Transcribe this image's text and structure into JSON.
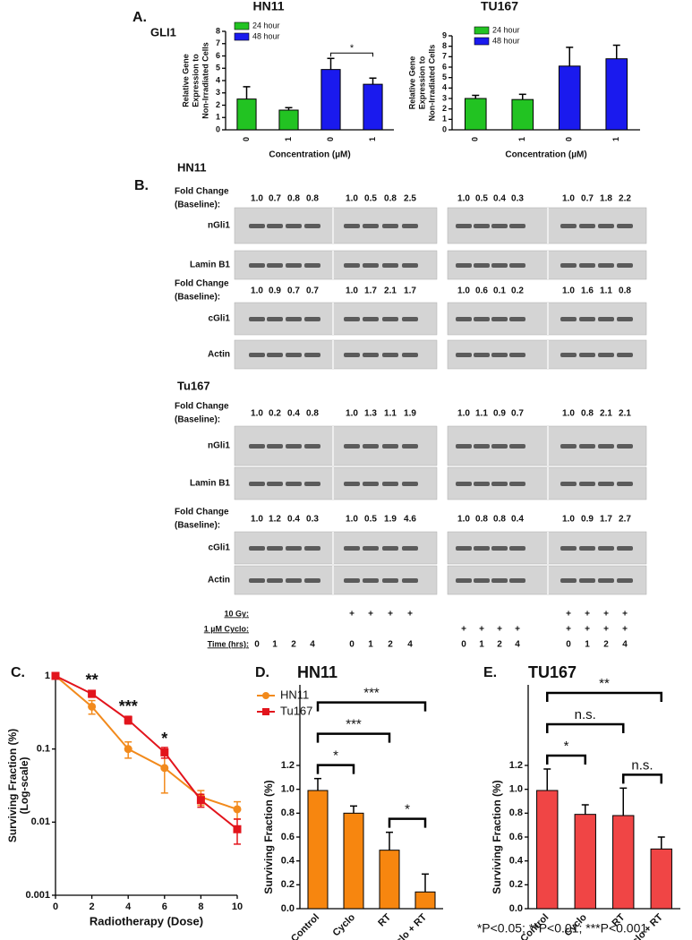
{
  "panel_labels": {
    "a": "A.",
    "b": "B.",
    "c": "C.",
    "d": "D.",
    "e": "E."
  },
  "gene": "GLI1",
  "chart_data": [
    {
      "type": "bar",
      "title": "HN11",
      "categories": [
        "0",
        "1",
        "0",
        "1"
      ],
      "series": [
        {
          "name": "24 hour",
          "color": "#22c322",
          "values": [
            2.5,
            1.6,
            null,
            null
          ],
          "errors": [
            1.0,
            0.2,
            null,
            null
          ]
        },
        {
          "name": "48 hour",
          "color": "#1a1aee",
          "values": [
            null,
            null,
            4.9,
            3.7
          ],
          "errors": [
            null,
            null,
            0.9,
            0.5
          ]
        }
      ],
      "ylim": [
        0,
        8
      ],
      "yticks": [
        0,
        1,
        2,
        3,
        4,
        5,
        6,
        7,
        8
      ],
      "xlabel": "Concentration (µM)",
      "ylabel": [
        "Relative Gene",
        "Expression to",
        "Non-Irradiated Cells"
      ],
      "legend": "upper left",
      "significance": [
        {
          "bars": [
            2,
            3
          ],
          "label": "*"
        }
      ]
    },
    {
      "type": "bar",
      "title": "TU167",
      "categories": [
        "0",
        "1",
        "0",
        "1"
      ],
      "series": [
        {
          "name": "24 hour",
          "color": "#22c322",
          "values": [
            3.0,
            2.9,
            null,
            null
          ],
          "errors": [
            0.3,
            0.5,
            null,
            null
          ]
        },
        {
          "name": "48 hour",
          "color": "#1a1aee",
          "values": [
            null,
            null,
            6.1,
            6.8
          ],
          "errors": [
            null,
            null,
            1.8,
            1.3
          ]
        }
      ],
      "ylim": [
        0,
        9
      ],
      "yticks": [
        0,
        1,
        2,
        3,
        4,
        5,
        6,
        7,
        8,
        9
      ],
      "xlabel": "Concentration (µM)",
      "ylabel": [
        "Relative Gene",
        "Expression to",
        "Non-Irradiated Cells"
      ],
      "legend": "upper left"
    },
    {
      "type": "line",
      "x": [
        0,
        2,
        4,
        6,
        8,
        10
      ],
      "series": [
        {
          "name": "HN11",
          "color": "#f28a1c",
          "marker": "circle",
          "values": [
            1,
            0.38,
            0.1,
            0.055,
            0.022,
            0.015
          ],
          "errors": [
            0.05,
            0.08,
            0.025,
            0.03,
            0.005,
            0.004
          ]
        },
        {
          "name": "Tu167",
          "color": "#e2141c",
          "marker": "square",
          "values": [
            1,
            0.57,
            0.25,
            0.09,
            0.02,
            0.008
          ],
          "errors": [
            0.05,
            0.06,
            0.03,
            0.015,
            0.004,
            0.003
          ]
        }
      ],
      "xlim": [
        0,
        10
      ],
      "xticks": [
        0,
        2,
        4,
        6,
        8,
        10
      ],
      "ylim": [
        0.001,
        1
      ],
      "yticks": [
        0.001,
        0.01,
        0.1,
        1
      ],
      "yscale": "log",
      "xlabel": "Radiotherapy (Dose)",
      "ylabel": [
        "Surviving Fraction (%)",
        "(Log-scale)"
      ],
      "legend": "upper right",
      "annotations": [
        {
          "x": 2,
          "text": "**"
        },
        {
          "x": 4,
          "text": "***"
        },
        {
          "x": 6,
          "text": "*"
        }
      ]
    },
    {
      "type": "bar",
      "title": "HN11",
      "categories": [
        "Control",
        "Cyclo",
        "RT",
        "Cyclo + RT"
      ],
      "series": [
        {
          "color": "#f7860f",
          "values": [
            0.99,
            0.8,
            0.49,
            0.14
          ],
          "errors": [
            0.1,
            0.06,
            0.15,
            0.15
          ]
        }
      ],
      "ylim": [
        0,
        1.2
      ],
      "yticks": [
        {
          "value": 0,
          "label": "0.0"
        },
        0.2,
        0.4,
        0.6,
        0.8,
        {
          "value": 1,
          "label": "1.0"
        },
        1.2
      ],
      "ylabel": [
        "Surviving Fraction (%)"
      ],
      "significance": [
        {
          "bars": [
            0,
            1
          ],
          "label": "*"
        },
        {
          "bars": [
            0,
            2
          ],
          "label": "***"
        },
        {
          "bars": [
            0,
            3
          ],
          "label": "***"
        },
        {
          "bars": [
            2,
            3
          ],
          "label": "*"
        }
      ]
    },
    {
      "type": "bar",
      "title": "TU167",
      "categories": [
        "Control",
        "Cyclo",
        "RT",
        "Cyclo + RT"
      ],
      "series": [
        {
          "color": "#f04545",
          "values": [
            0.99,
            0.79,
            0.78,
            0.5
          ],
          "errors": [
            0.18,
            0.08,
            0.23,
            0.1
          ]
        }
      ],
      "ylim": [
        0,
        1.2
      ],
      "yticks": [
        {
          "value": 0,
          "label": "0.0"
        },
        0.2,
        0.4,
        0.6,
        0.8,
        {
          "value": 1,
          "label": "1.0"
        },
        1.2
      ],
      "ylabel": [
        "Surviving Fraction (%)"
      ],
      "significance": [
        {
          "bars": [
            0,
            1
          ],
          "label": "*"
        },
        {
          "bars": [
            0,
            2
          ],
          "label": "n.s."
        },
        {
          "bars": [
            0,
            3
          ],
          "label": "**"
        },
        {
          "bars": [
            2,
            3
          ],
          "label": "n.s."
        }
      ]
    }
  ],
  "blots": {
    "sections": [
      {
        "title": "HN11",
        "blocks": [
          {
            "fold_label": [
              "Fold Change",
              "(Baseline):"
            ],
            "fold": [
              "1.0",
              "0.7",
              "0.8",
              "0.8",
              "1.0",
              "0.5",
              "0.8",
              "2.5",
              "1.0",
              "0.5",
              "0.4",
              "0.3",
              "1.0",
              "0.7",
              "1.8",
              "2.2"
            ],
            "rows": [
              "nGli1",
              "Lamin B1"
            ]
          },
          {
            "fold_label": [
              "Fold Change",
              "(Baseline):"
            ],
            "fold": [
              "1.0",
              "0.9",
              "0.7",
              "0.7",
              "1.0",
              "1.7",
              "2.1",
              "1.7",
              "1.0",
              "0.6",
              "0.1",
              "0.2",
              "1.0",
              "1.6",
              "1.1",
              "0.8"
            ],
            "rows": [
              "cGli1",
              "Actin"
            ]
          }
        ]
      },
      {
        "title": "Tu167",
        "blocks": [
          {
            "fold_label": [
              "Fold Change",
              "(Baseline):"
            ],
            "fold": [
              "1.0",
              "0.2",
              "0.4",
              "0.8",
              "1.0",
              "1.3",
              "1.1",
              "1.9",
              "1.0",
              "1.1",
              "0.9",
              "0.7",
              "1.0",
              "0.8",
              "2.1",
              "2.1"
            ],
            "rows": [
              "nGli1",
              "Lamin B1"
            ]
          },
          {
            "fold_label": [
              "Fold Change",
              "(Baseline):"
            ],
            "fold": [
              "1.0",
              "1.2",
              "0.4",
              "0.3",
              "1.0",
              "0.5",
              "1.9",
              "4.6",
              "1.0",
              "0.8",
              "0.8",
              "0.4",
              "1.0",
              "0.9",
              "1.7",
              "2.7"
            ],
            "rows": [
              "cGli1",
              "Actin"
            ]
          }
        ]
      }
    ],
    "conditions": [
      {
        "label": "10 Gy:",
        "lanes": [
          null,
          null,
          null,
          null,
          "+",
          "+",
          "+",
          "+",
          null,
          null,
          null,
          null,
          "+",
          "+",
          "+",
          "+"
        ]
      },
      {
        "label": "1 µM Cyclo:",
        "lanes": [
          null,
          null,
          null,
          null,
          null,
          null,
          null,
          null,
          "+",
          "+",
          "+",
          "+",
          "+",
          "+",
          "+",
          "+"
        ]
      },
      {
        "label": "Time (hrs):",
        "lanes": [
          "0",
          "1",
          "2",
          "4",
          "0",
          "1",
          "2",
          "4",
          "0",
          "1",
          "2",
          "4",
          "0",
          "1",
          "2",
          "4"
        ]
      }
    ]
  },
  "footnote": "*P<0.05; **P<0.01; ***P<0.001"
}
